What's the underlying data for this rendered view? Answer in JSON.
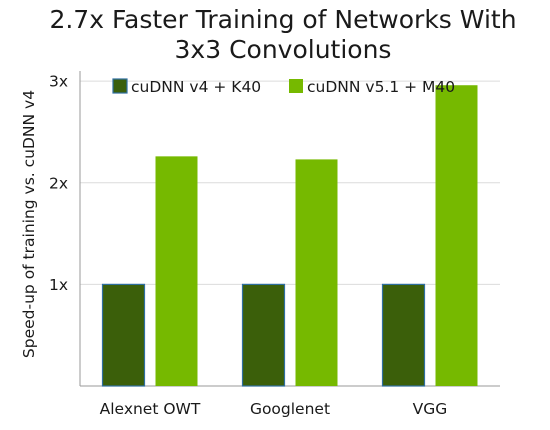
{
  "chart_data": {
    "type": "bar",
    "title_lines": [
      "2.7x Faster Training of Networks With",
      "3x3 Convolutions"
    ],
    "categories": [
      "Alexnet OWT",
      "Googlenet",
      "VGG"
    ],
    "series": [
      {
        "name": "cuDNN v4 + K40",
        "values": [
          1.0,
          1.0,
          1.0
        ],
        "color": "#3b5f0a",
        "edge_color": "#2f6fa0"
      },
      {
        "name": "cuDNN v5.1 + M40",
        "values": [
          2.26,
          2.23,
          2.96
        ],
        "color": "#76b900"
      }
    ],
    "ylabel": "Speed-up of training vs. cuDNN v4",
    "xlabel": "",
    "yticks": [
      1,
      2,
      3
    ],
    "ytick_labels": [
      "1x",
      "2x",
      "3x"
    ],
    "ylim": [
      0,
      3.1
    ],
    "grid": true,
    "legend_position": "top"
  }
}
